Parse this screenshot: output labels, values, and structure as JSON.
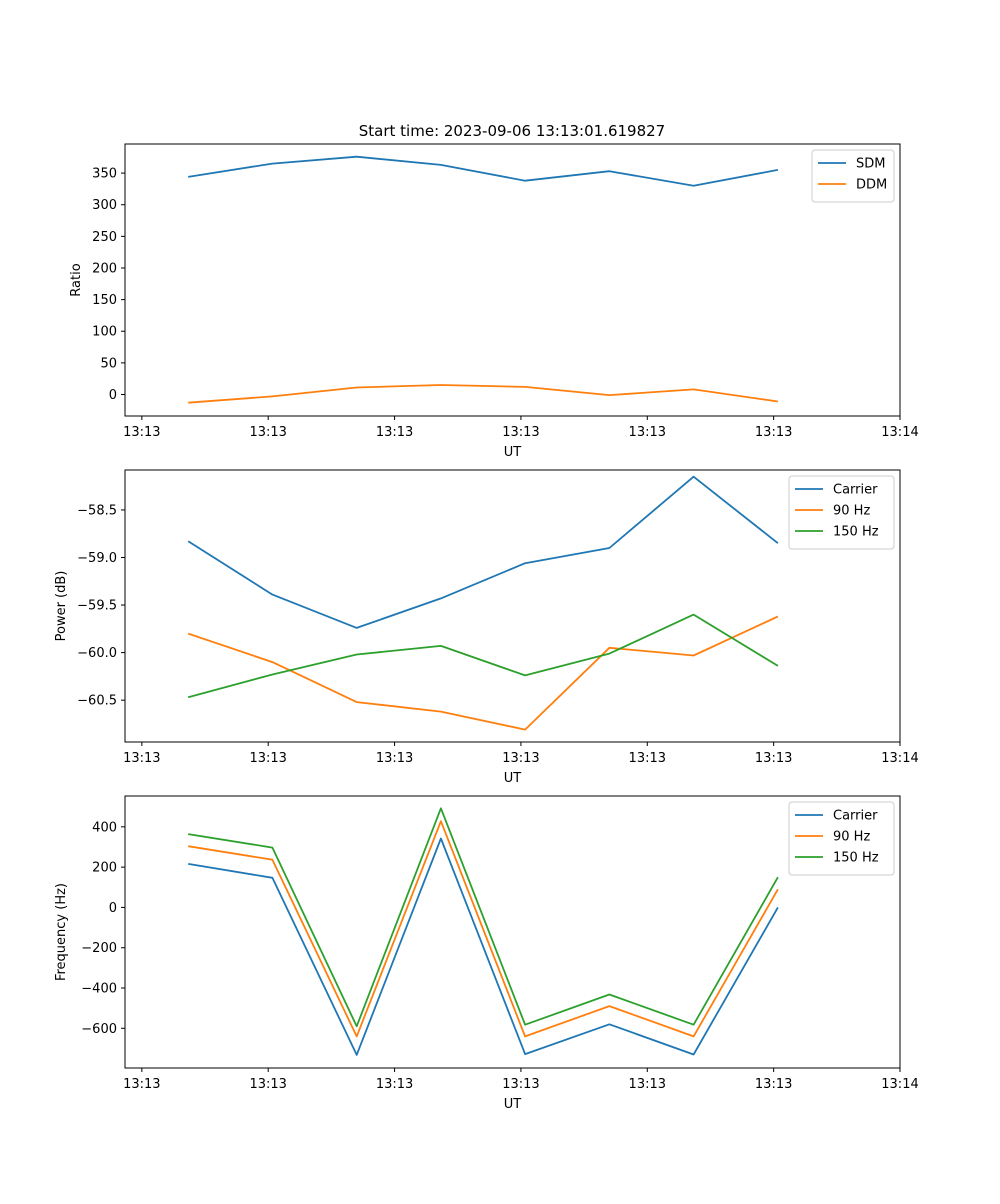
{
  "figure_title": "Start time: 2023-09-06 13:13:01.619827",
  "colors": {
    "blue": "#1f77b4",
    "orange": "#ff7f0e",
    "green": "#2ca02c"
  },
  "chart_data": [
    {
      "type": "line",
      "title": "Start time: 2023-09-06 13:13:01.619827",
      "xlabel": "UT",
      "ylabel": "Ratio",
      "x": [
        1,
        2,
        3,
        4,
        5,
        6,
        7,
        8
      ],
      "xlim": [
        0.25,
        9.45
      ],
      "xticks": [
        {
          "x": 0.45,
          "label": "13:13"
        },
        {
          "x": 1.95,
          "label": "13:13"
        },
        {
          "x": 3.45,
          "label": "13:13"
        },
        {
          "x": 4.95,
          "label": "13:13"
        },
        {
          "x": 6.45,
          "label": "13:13"
        },
        {
          "x": 7.95,
          "label": "13:13"
        },
        {
          "x": 9.45,
          "label": "13:14"
        }
      ],
      "ylim": [
        -34,
        396
      ],
      "yticks": [
        0,
        50,
        100,
        150,
        200,
        250,
        300,
        350
      ],
      "legend_position": "top-right",
      "series": [
        {
          "name": "SDM",
          "color": "#1f77b4",
          "values": [
            344,
            365,
            376,
            363,
            338,
            353,
            330,
            355
          ]
        },
        {
          "name": "DDM",
          "color": "#ff7f0e",
          "values": [
            -13,
            -3,
            11,
            15,
            12,
            -1,
            8,
            -11
          ]
        }
      ]
    },
    {
      "type": "line",
      "xlabel": "UT",
      "ylabel": "Power (dB)",
      "x": [
        1,
        2,
        3,
        4,
        5,
        6,
        7,
        8
      ],
      "xlim": [
        0.25,
        9.45
      ],
      "xticks": [
        {
          "x": 0.45,
          "label": "13:13"
        },
        {
          "x": 1.95,
          "label": "13:13"
        },
        {
          "x": 3.45,
          "label": "13:13"
        },
        {
          "x": 4.95,
          "label": "13:13"
        },
        {
          "x": 6.45,
          "label": "13:13"
        },
        {
          "x": 7.95,
          "label": "13:13"
        },
        {
          "x": 9.45,
          "label": "13:14"
        }
      ],
      "ylim": [
        -60.94,
        -58.08
      ],
      "yticks": [
        -60.5,
        -60.0,
        -59.5,
        -59.0,
        -58.5
      ],
      "ytick_labels": [
        "−60.5",
        "−60.0",
        "−59.5",
        "−59.0",
        "−58.5"
      ],
      "legend_position": "top-right",
      "series": [
        {
          "name": "Carrier",
          "color": "#1f77b4",
          "values": [
            -58.83,
            -59.39,
            -59.74,
            -59.43,
            -59.06,
            -58.9,
            -58.15,
            -58.85
          ]
        },
        {
          "name": "90 Hz",
          "color": "#ff7f0e",
          "values": [
            -59.8,
            -60.1,
            -60.52,
            -60.62,
            -60.81,
            -59.95,
            -60.03,
            -59.62
          ]
        },
        {
          "name": "150 Hz",
          "color": "#2ca02c",
          "values": [
            -60.47,
            -60.23,
            -60.02,
            -59.93,
            -60.24,
            -60.01,
            -59.6,
            -60.14
          ]
        }
      ]
    },
    {
      "type": "line",
      "xlabel": "UT",
      "ylabel": "Frequency (Hz)",
      "x": [
        1,
        2,
        3,
        4,
        5,
        6,
        7,
        8
      ],
      "xlim": [
        0.25,
        9.45
      ],
      "xticks": [
        {
          "x": 0.45,
          "label": "13:13"
        },
        {
          "x": 1.95,
          "label": "13:13"
        },
        {
          "x": 3.45,
          "label": "13:13"
        },
        {
          "x": 4.95,
          "label": "13:13"
        },
        {
          "x": 6.45,
          "label": "13:13"
        },
        {
          "x": 7.95,
          "label": "13:13"
        },
        {
          "x": 9.45,
          "label": "13:14"
        }
      ],
      "ylim": [
        -797,
        553
      ],
      "yticks": [
        -600,
        -400,
        -200,
        0,
        200,
        400
      ],
      "ytick_labels": [
        "−600",
        "−400",
        "−200",
        "0",
        "200",
        "400"
      ],
      "legend_position": "top-right",
      "series": [
        {
          "name": "Carrier",
          "color": "#1f77b4",
          "values": [
            216,
            147,
            -732,
            342,
            -728,
            -580,
            -730,
            0
          ]
        },
        {
          "name": "90 Hz",
          "color": "#ff7f0e",
          "values": [
            304,
            237,
            -640,
            428,
            -640,
            -490,
            -640,
            90
          ]
        },
        {
          "name": "150 Hz",
          "color": "#2ca02c",
          "values": [
            364,
            297,
            -590,
            492,
            -582,
            -432,
            -582,
            150
          ]
        }
      ]
    }
  ]
}
